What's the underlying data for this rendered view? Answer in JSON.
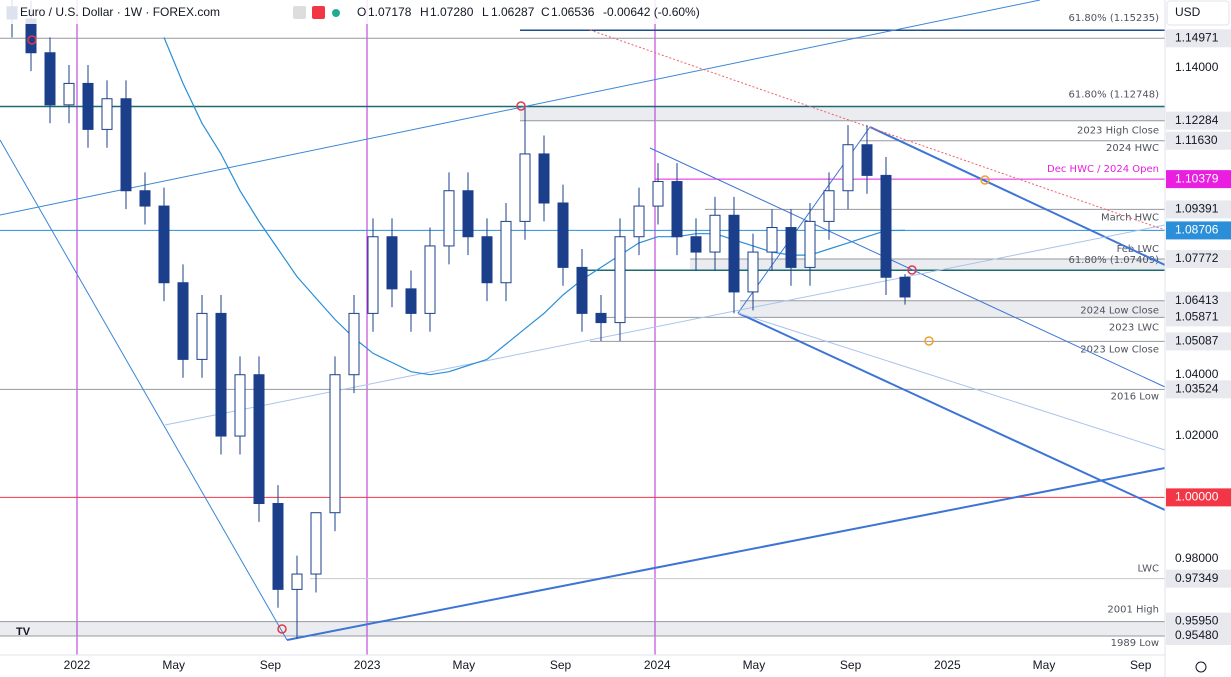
{
  "header": {
    "symbol": "Euro / U.S. Dollar · 1W · FOREX.com",
    "o_label": "O",
    "o": "1.07178",
    "h_label": "H",
    "h": "1.07280",
    "l_label": "L",
    "l": "1.06287",
    "c_label": "C",
    "c": "1.06536",
    "change": "-0.00642 (-0.60%)",
    "currency": "USD"
  },
  "chart_data": {
    "type": "candlestick",
    "categories": [
      "2022",
      "May",
      "Sep",
      "2023",
      "May",
      "Sep",
      "2024",
      "May",
      "Sep",
      "2025",
      "May",
      "Sep"
    ],
    "ylim": [
      0.9486,
      1.1622
    ],
    "yticks": [
      {
        "value": 0.98,
        "label": "0.98000"
      },
      {
        "value": 1.02,
        "label": "1.02000"
      },
      {
        "value": 1.04,
        "label": "1.04000"
      },
      {
        "value": 1.14,
        "label": "1.14000"
      }
    ],
    "open": [
      1.16,
      1.156,
      1.145,
      1.128,
      1.135,
      1.12,
      1.13,
      1.1,
      1.095,
      1.07,
      1.045,
      1.06,
      1.02,
      1.04,
      0.998,
      0.97,
      0.975,
      0.995,
      1.04,
      1.06,
      1.085,
      1.068,
      1.06,
      1.082,
      1.1,
      1.085,
      1.07,
      1.09,
      1.112,
      1.096,
      1.075,
      1.06,
      1.057,
      1.085,
      1.095,
      1.103,
      1.085,
      1.08,
      1.092,
      1.067,
      1.08,
      1.088,
      1.075,
      1.09,
      1.1,
      1.115,
      1.105,
      1.07178
    ],
    "high": [
      1.166,
      1.162,
      1.15,
      1.141,
      1.141,
      1.136,
      1.136,
      1.106,
      1.101,
      1.076,
      1.066,
      1.066,
      1.046,
      1.046,
      1.004,
      0.981,
      0.995,
      1.046,
      1.066,
      1.091,
      1.091,
      1.074,
      1.088,
      1.106,
      1.106,
      1.091,
      1.096,
      1.1275,
      1.118,
      1.102,
      1.081,
      1.066,
      1.091,
      1.101,
      1.109,
      1.109,
      1.091,
      1.098,
      1.098,
      1.086,
      1.094,
      1.094,
      1.096,
      1.106,
      1.1214,
      1.1214,
      1.111,
      1.0728
    ],
    "low": [
      1.15,
      1.139,
      1.122,
      1.122,
      1.114,
      1.114,
      1.094,
      1.089,
      1.064,
      1.039,
      1.039,
      1.014,
      1.014,
      0.992,
      0.964,
      0.954,
      0.969,
      0.989,
      1.034,
      1.054,
      1.062,
      1.054,
      1.054,
      1.076,
      1.079,
      1.064,
      1.064,
      1.084,
      1.09,
      1.069,
      1.054,
      1.051,
      1.051,
      1.079,
      1.089,
      1.079,
      1.074,
      1.074,
      1.06,
      1.061,
      1.074,
      1.069,
      1.069,
      1.084,
      1.094,
      1.099,
      1.066,
      1.06287
    ],
    "close": [
      1.156,
      1.145,
      1.128,
      1.135,
      1.12,
      1.13,
      1.1,
      1.095,
      1.07,
      1.045,
      1.06,
      1.02,
      1.04,
      0.998,
      0.97,
      0.975,
      0.995,
      1.04,
      1.06,
      1.085,
      1.068,
      1.06,
      1.082,
      1.1,
      1.085,
      1.07,
      1.09,
      1.112,
      1.096,
      1.075,
      1.06,
      1.057,
      1.085,
      1.095,
      1.103,
      1.085,
      1.08,
      1.092,
      1.067,
      1.08,
      1.088,
      1.075,
      1.09,
      1.1,
      1.115,
      1.105,
      1.07178,
      1.06536
    ],
    "ma": [
      null,
      null,
      null,
      null,
      null,
      null,
      null,
      null,
      1.15,
      1.135,
      1.122,
      1.112,
      1.1,
      1.09,
      1.081,
      1.072,
      1.065,
      1.058,
      1.052,
      1.047,
      1.044,
      1.041,
      1.04,
      1.041,
      1.043,
      1.045,
      1.05,
      1.055,
      1.06,
      1.066,
      1.071,
      1.075,
      1.079,
      1.083,
      1.085,
      1.085,
      1.086,
      1.086,
      1.084,
      1.082,
      1.08,
      1.079,
      1.079,
      1.081,
      1.083,
      1.085,
      1.087,
      1.08706
    ],
    "up_color": "#ffffff",
    "down_color": "#1c3f8c",
    "ma_color": "#2a8fd8",
    "levels": [
      {
        "value": 1.15235,
        "note": "61.80% (1.15235)",
        "color": "#1c4f8c"
      },
      {
        "value": 1.14971,
        "label": "1.14971",
        "color": "#9598a1"
      },
      {
        "value": 1.12748,
        "note": "61.80% (1.12748)",
        "color": "#1d6b70"
      },
      {
        "value": 1.12284,
        "label": "1.12284",
        "note": "2023 High Close",
        "color": "#9598a1"
      },
      {
        "value": 1.1163,
        "label": "1.11630",
        "note": "2024 HWC",
        "color": "#9598a1"
      },
      {
        "value": 1.10379,
        "label": "1.10379",
        "note": "Dec HWC / 2024 Open",
        "color": "#e91ee0"
      },
      {
        "value": 1.09391,
        "label": "1.09391",
        "note": "March HWC",
        "color": "#9598a1"
      },
      {
        "value": 1.08706,
        "label": "1.08706",
        "color": "#2a8fd8"
      },
      {
        "value": 1.07772,
        "label": "1.07772",
        "note": "Feb LWC",
        "color": "#9598a1"
      },
      {
        "value": 1.07409,
        "note": "61.80% (1.07409)",
        "color": "#1d6b70"
      },
      {
        "value": 1.06413,
        "label": "1.06413",
        "note": "2024 Low Close",
        "color": "#9598a1"
      },
      {
        "value": 1.05871,
        "label": "1.05871",
        "note": "2023 LWC",
        "color": "#9598a1"
      },
      {
        "value": 1.05087,
        "label": "1.05087",
        "note": "2023 Low Close",
        "color": "#9598a1"
      },
      {
        "value": 1.03524,
        "label": "1.03524",
        "note": "2016 Low",
        "color": "#9598a1"
      },
      {
        "value": 1.0,
        "label": "1.00000",
        "color": "#f23645"
      },
      {
        "value": 0.97349,
        "label": "0.97349",
        "note": "LWC",
        "color": "#c8cad0"
      },
      {
        "value": 0.9595,
        "label": "0.95950",
        "note": "2001 High",
        "color": "#9598a1"
      },
      {
        "value": 0.9548,
        "label": "0.95480",
        "note": "1989 Low",
        "color": "#9598a1"
      }
    ]
  }
}
